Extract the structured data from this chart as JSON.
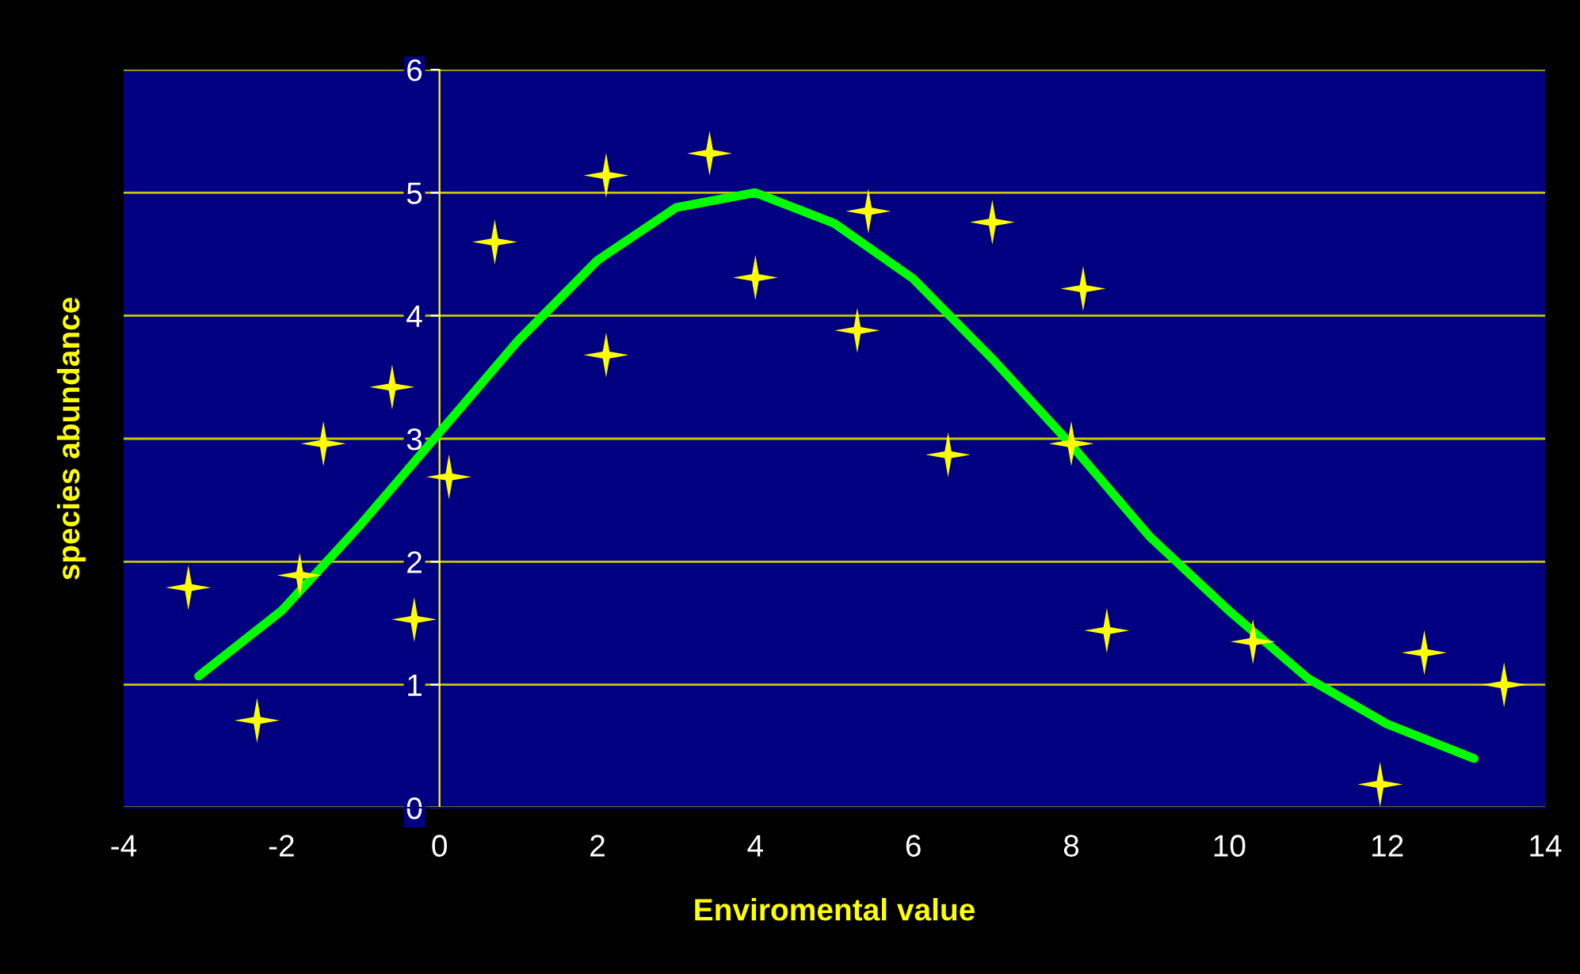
{
  "chart_data": {
    "type": "scatter",
    "xlabel": "Enviromental value",
    "ylabel": "species abundance",
    "xlim": [
      -4,
      14
    ],
    "ylim": [
      0,
      6
    ],
    "xticks": [
      -4,
      -2,
      0,
      2,
      4,
      6,
      8,
      10,
      12,
      14
    ],
    "yticks": [
      0,
      1,
      2,
      3,
      4,
      5,
      6
    ],
    "grid": "y",
    "legend": false,
    "marker": "star",
    "series": [
      {
        "color": "#ffff00",
        "x": [
          -3.18,
          -2.31,
          -1.77,
          -1.47,
          -0.6,
          -0.32,
          0.12,
          0.7,
          2.11,
          2.11,
          3.42,
          4.0,
          5.29,
          5.43,
          6.44,
          7.0,
          8.15,
          8.0,
          8.45,
          10.3,
          11.91,
          12.47,
          13.48
        ],
        "values": [
          1.79,
          0.71,
          1.89,
          2.96,
          3.42,
          1.53,
          2.69,
          4.6,
          5.14,
          3.68,
          5.32,
          4.31,
          3.88,
          4.85,
          2.87,
          4.76,
          4.22,
          2.96,
          1.44,
          1.35,
          0.19,
          1.26,
          1.0
        ]
      },
      {
        "type": "line",
        "color": "#00ff00",
        "marker": "none",
        "line_style": "solid",
        "x": [
          -3.05,
          -2,
          -1,
          0,
          1,
          2,
          3,
          4,
          5,
          6,
          7,
          8,
          9,
          10,
          11,
          12,
          13.1
        ],
        "values": [
          1.07,
          1.6,
          2.3,
          3.05,
          3.8,
          4.45,
          4.88,
          5.0,
          4.75,
          4.3,
          3.65,
          2.95,
          2.2,
          1.6,
          1.05,
          0.68,
          0.4
        ]
      }
    ]
  }
}
